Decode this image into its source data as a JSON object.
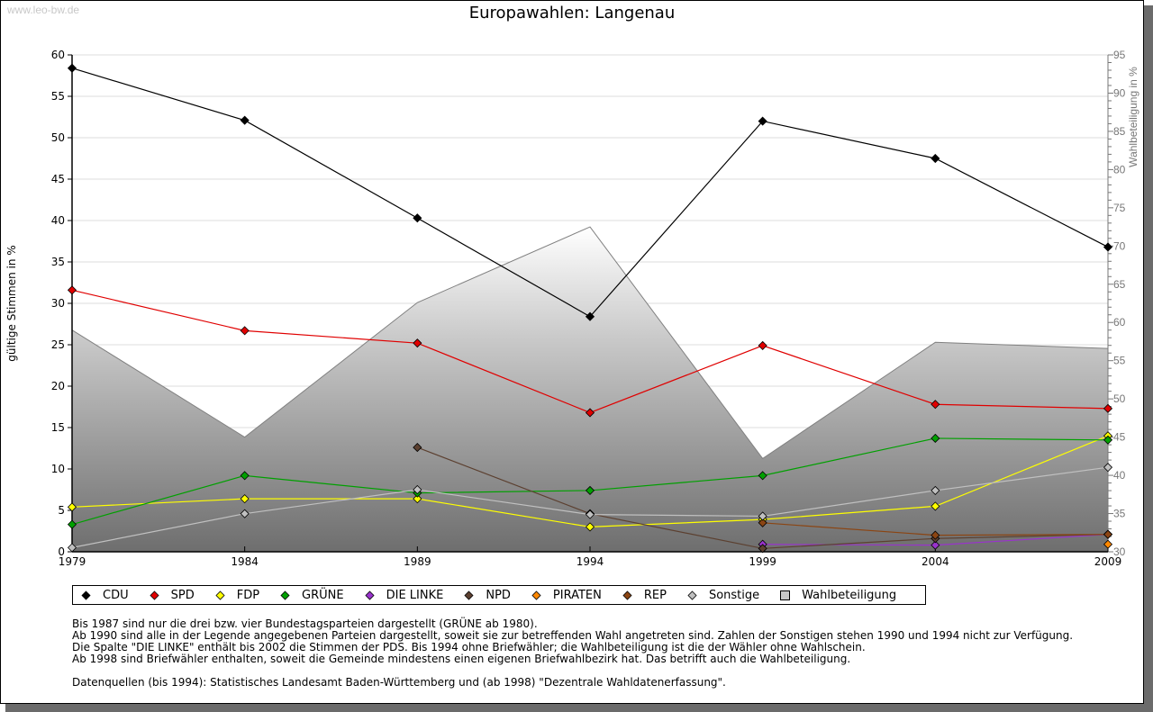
{
  "watermark": "www.leo-bw.de",
  "chart_data": {
    "type": "line",
    "title": "Europawahlen: Langenau",
    "ylabel": "gültige Stimmen in %",
    "y2label": "Wahlbeteiligung in %",
    "xlabel": "",
    "x": [
      1979,
      1984,
      1989,
      1994,
      1999,
      2004,
      2009
    ],
    "x_tick_labels": [
      "1979",
      "1984",
      "1989",
      "1994",
      "1999",
      "2004",
      "2009"
    ],
    "ylim": [
      0,
      60
    ],
    "y_ticks": [
      "0",
      "5",
      "10",
      "15",
      "20",
      "25",
      "30",
      "35",
      "40",
      "45",
      "50",
      "55",
      "60"
    ],
    "y2lim": [
      30,
      95
    ],
    "y2_ticks": [
      "30",
      "35",
      "40",
      "45",
      "50",
      "55",
      "60",
      "65",
      "70",
      "75",
      "80",
      "85",
      "90",
      "95"
    ],
    "grid": true,
    "legend_position": "bottom",
    "area_series": {
      "name": "Wahlbeteiligung",
      "axis": "right",
      "values": [
        59.0,
        45.0,
        62.6,
        72.5,
        42.2,
        57.4,
        56.6
      ]
    },
    "series": [
      {
        "name": "CDU",
        "color": "#000000",
        "values": [
          58.4,
          52.1,
          40.3,
          28.4,
          52.0,
          47.5,
          36.8
        ]
      },
      {
        "name": "SPD",
        "color": "#e00000",
        "values": [
          31.6,
          26.7,
          25.2,
          16.8,
          24.9,
          17.8,
          17.3
        ]
      },
      {
        "name": "FDP",
        "color": "#ffff00",
        "values": [
          5.4,
          6.4,
          6.4,
          3.0,
          3.9,
          5.5,
          14.0
        ]
      },
      {
        "name": "GRÜNE",
        "color": "#00a000",
        "values": [
          3.3,
          9.2,
          7.1,
          7.4,
          9.2,
          13.7,
          13.5
        ]
      },
      {
        "name": "DIE LINKE",
        "color": "#9933cc",
        "values": [
          null,
          null,
          null,
          null,
          0.9,
          0.8,
          2.1
        ]
      },
      {
        "name": "NPD",
        "color": "#5c4030",
        "values": [
          null,
          null,
          12.6,
          4.6,
          0.4,
          1.6,
          2.1
        ]
      },
      {
        "name": "PIRATEN",
        "color": "#ff8800",
        "values": [
          null,
          null,
          null,
          null,
          null,
          null,
          0.9
        ]
      },
      {
        "name": "REP",
        "color": "#8b4513",
        "values": [
          null,
          null,
          null,
          null,
          3.5,
          2.0,
          2.1
        ]
      },
      {
        "name": "Sonstige",
        "color": "#c0c0c0",
        "values": [
          0.5,
          4.6,
          7.5,
          4.5,
          4.3,
          7.4,
          10.2
        ]
      }
    ]
  },
  "legend": [
    {
      "label": "CDU",
      "color": "#000000",
      "shape": "diamond"
    },
    {
      "label": "SPD",
      "color": "#e00000",
      "shape": "diamond"
    },
    {
      "label": "FDP",
      "color": "#ffff00",
      "shape": "diamond"
    },
    {
      "label": "GRÜNE",
      "color": "#00a000",
      "shape": "diamond"
    },
    {
      "label": "DIE LINKE",
      "color": "#9933cc",
      "shape": "diamond"
    },
    {
      "label": "NPD",
      "color": "#5c4030",
      "shape": "diamond"
    },
    {
      "label": "PIRATEN",
      "color": "#ff8800",
      "shape": "diamond"
    },
    {
      "label": "REP",
      "color": "#8b4513",
      "shape": "diamond"
    },
    {
      "label": "Sonstige",
      "color": "#c0c0c0",
      "shape": "diamond"
    },
    {
      "label": "Wahlbeteiligung",
      "color": "#a0a0a0",
      "shape": "square"
    }
  ],
  "notes": [
    "Bis 1987 sind nur die drei bzw. vier Bundestagsparteien dargestellt (GRÜNE ab 1980).",
    "Ab 1990 sind alle in der Legende angegebenen Parteien dargestellt, soweit sie zur betreffenden Wahl angetreten sind. Zahlen der Sonstigen stehen 1990 und 1994 nicht zur Verfügung.",
    "Die Spalte \"DIE LINKE\" enthält bis 2002 die Stimmen der PDS. Bis 1994 ohne Briefwähler; die Wahlbeteiligung ist die der Wähler ohne Wahlschein.",
    "Ab 1998 sind Briefwähler enthalten, soweit die Gemeinde mindestens einen eigenen Briefwahlbezirk hat. Das betrifft auch die Wahlbeteiligung.",
    "",
    "Datenquellen (bis 1994): Statistisches Landesamt Baden-Württemberg und (ab 1998) \"Dezentrale Wahldatenerfassung\"."
  ]
}
